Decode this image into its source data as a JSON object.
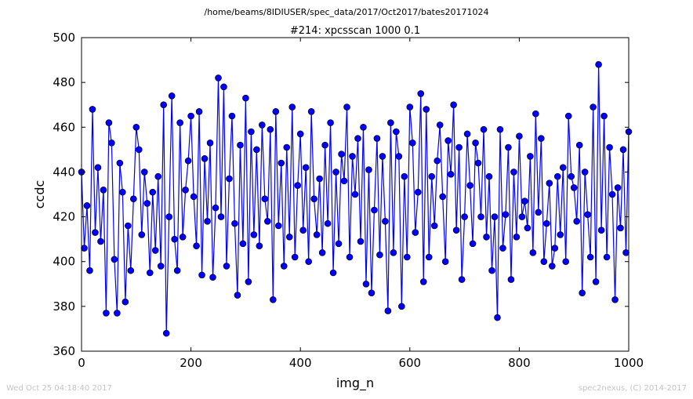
{
  "figure": {
    "suptitle": "/home/beams/8IDIUSER/spec_data/2017/Oct2017/bates20171024",
    "footer_left": "Wed Oct 25 04:18:40 2017",
    "footer_right": "spec2nexus, (C) 2014-2017"
  },
  "chart_data": {
    "type": "line",
    "title": "#214: xpcsscan 1000 0.1",
    "xlabel": "img_n",
    "ylabel": "ccdc",
    "xlim": [
      0,
      1000
    ],
    "ylim": [
      360,
      500
    ],
    "xticks": [
      0,
      200,
      400,
      600,
      800,
      1000
    ],
    "yticks": [
      360,
      380,
      400,
      420,
      440,
      460,
      480,
      500
    ],
    "grid": false,
    "markers": "circle",
    "line_color": "#0000ff",
    "marker_color": "#0000ff",
    "series": [
      {
        "name": "",
        "x": [
          0,
          5,
          10,
          15,
          20,
          25,
          30,
          35,
          40,
          45,
          50,
          55,
          60,
          65,
          70,
          75,
          80,
          85,
          90,
          95,
          100,
          105,
          110,
          115,
          120,
          125,
          130,
          135,
          140,
          145,
          150,
          155,
          160,
          165,
          170,
          175,
          180,
          185,
          190,
          195,
          200,
          205,
          210,
          215,
          220,
          225,
          230,
          235,
          240,
          245,
          250,
          255,
          260,
          265,
          270,
          275,
          280,
          285,
          290,
          295,
          300,
          305,
          310,
          315,
          320,
          325,
          330,
          335,
          340,
          345,
          350,
          355,
          360,
          365,
          370,
          375,
          380,
          385,
          390,
          395,
          400,
          405,
          410,
          415,
          420,
          425,
          430,
          435,
          440,
          445,
          450,
          455,
          460,
          465,
          470,
          475,
          480,
          485,
          490,
          495,
          500,
          505,
          510,
          515,
          520,
          525,
          530,
          535,
          540,
          545,
          550,
          555,
          560,
          565,
          570,
          575,
          580,
          585,
          590,
          595,
          600,
          605,
          610,
          615,
          620,
          625,
          630,
          635,
          640,
          645,
          650,
          655,
          660,
          665,
          670,
          675,
          680,
          685,
          690,
          695,
          700,
          705,
          710,
          715,
          720,
          725,
          730,
          735,
          740,
          745,
          750,
          755,
          760,
          765,
          770,
          775,
          780,
          785,
          790,
          795,
          800,
          805,
          810,
          815,
          820,
          825,
          830,
          835,
          840,
          845,
          850,
          855,
          860,
          865,
          870,
          875,
          880,
          885,
          890,
          895,
          900,
          905,
          910,
          915,
          920,
          925,
          930,
          935,
          940,
          945,
          950,
          955,
          960,
          965,
          970,
          975,
          980,
          985,
          990,
          995,
          1000
        ],
        "y": [
          440,
          406,
          425,
          396,
          468,
          413,
          442,
          409,
          432,
          377,
          462,
          453,
          401,
          377,
          444,
          431,
          382,
          416,
          396,
          428,
          460,
          450,
          412,
          440,
          426,
          395,
          431,
          405,
          438,
          398,
          470,
          368,
          420,
          474,
          410,
          396,
          462,
          411,
          432,
          445,
          465,
          429,
          407,
          467,
          394,
          446,
          418,
          453,
          393,
          424,
          482,
          420,
          478,
          398,
          437,
          465,
          417,
          385,
          452,
          408,
          473,
          391,
          458,
          412,
          450,
          407,
          461,
          428,
          418,
          459,
          383,
          467,
          416,
          444,
          398,
          451,
          411,
          469,
          402,
          434,
          457,
          414,
          442,
          400,
          467,
          428,
          412,
          437,
          404,
          452,
          417,
          462,
          395,
          440,
          408,
          448,
          436,
          469,
          402,
          447,
          430,
          455,
          409,
          460,
          390,
          441,
          386,
          423,
          455,
          403,
          447,
          418,
          378,
          462,
          404,
          458,
          447,
          380,
          438,
          402,
          469,
          453,
          413,
          431,
          475,
          391,
          468,
          402,
          438,
          416,
          445,
          461,
          429,
          400,
          454,
          439,
          470,
          414,
          451,
          392,
          420,
          457,
          434,
          408,
          453,
          444,
          420,
          459,
          411,
          438,
          396,
          420,
          375,
          459,
          406,
          421,
          451,
          392,
          440,
          411,
          456,
          420,
          427,
          415,
          447,
          404,
          466,
          422,
          455,
          400,
          417,
          435,
          398,
          406,
          438,
          412,
          442,
          400,
          465,
          438,
          433,
          418,
          452,
          386,
          440,
          421,
          402,
          469,
          391,
          488,
          414,
          465,
          402,
          451,
          430,
          383,
          433,
          415,
          450,
          404,
          458
        ],
        "note_sampled": ""
      }
    ]
  }
}
